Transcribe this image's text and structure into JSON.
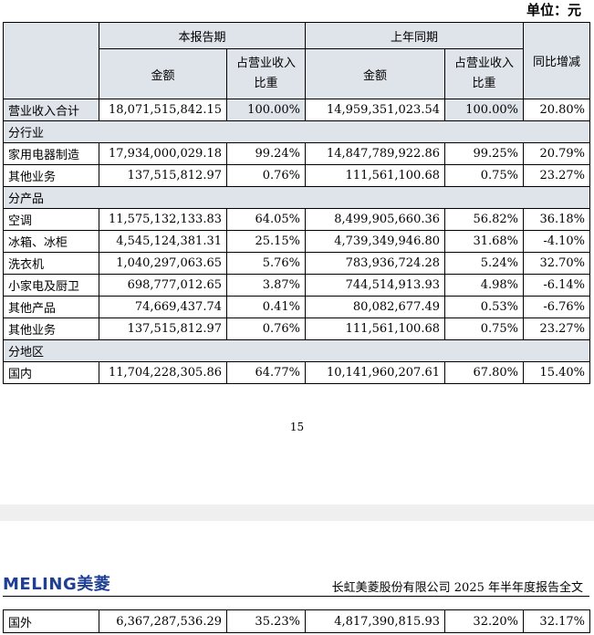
{
  "unit_label": "单位：元",
  "header": {
    "current_period": "本报告期",
    "same_period_last_year": "上年同期",
    "amount": "金额",
    "share_line1": "占营业收入",
    "share_line2": "比重",
    "yoy_change": "同比增减"
  },
  "total": {
    "name": "营业收入合计",
    "cur_amt": "18,071,515,842.15",
    "cur_pct": "100.00%",
    "prev_amt": "14,959,351,023.54",
    "prev_pct": "100.00%",
    "yoy": "20.80%"
  },
  "by_industry": {
    "title": "分行业",
    "rows": [
      {
        "name": "家用电器制造",
        "cur_amt": "17,934,000,029.18",
        "cur_pct": "99.24%",
        "prev_amt": "14,847,789,922.86",
        "prev_pct": "99.25%",
        "yoy": "20.79%"
      },
      {
        "name": "其他业务",
        "cur_amt": "137,515,812.97",
        "cur_pct": "0.76%",
        "prev_amt": "111,561,100.68",
        "prev_pct": "0.75%",
        "yoy": "23.27%"
      }
    ]
  },
  "by_product": {
    "title": "分产品",
    "rows": [
      {
        "name": "空调",
        "cur_amt": "11,575,132,133.83",
        "cur_pct": "64.05%",
        "prev_amt": "8,499,905,660.36",
        "prev_pct": "56.82%",
        "yoy": "36.18%"
      },
      {
        "name": "冰箱、冰柜",
        "cur_amt": "4,545,124,381.31",
        "cur_pct": "25.15%",
        "prev_amt": "4,739,349,946.80",
        "prev_pct": "31.68%",
        "yoy": "-4.10%"
      },
      {
        "name": "洗衣机",
        "cur_amt": "1,040,297,063.65",
        "cur_pct": "5.76%",
        "prev_amt": "783,936,724.28",
        "prev_pct": "5.24%",
        "yoy": "32.70%"
      },
      {
        "name": "小家电及厨卫",
        "cur_amt": "698,777,012.65",
        "cur_pct": "3.87%",
        "prev_amt": "744,514,913.93",
        "prev_pct": "4.98%",
        "yoy": "-6.14%"
      },
      {
        "name": "其他产品",
        "cur_amt": "74,669,437.74",
        "cur_pct": "0.41%",
        "prev_amt": "80,082,677.49",
        "prev_pct": "0.53%",
        "yoy": "-6.76%"
      },
      {
        "name": "其他业务",
        "cur_amt": "137,515,812.97",
        "cur_pct": "0.76%",
        "prev_amt": "111,561,100.68",
        "prev_pct": "0.75%",
        "yoy": "23.27%"
      }
    ]
  },
  "by_region": {
    "title": "分地区",
    "rows": [
      {
        "name": "国内",
        "cur_amt": "11,704,228,305.86",
        "cur_pct": "64.77%",
        "prev_amt": "10,141,960,207.61",
        "prev_pct": "67.80%",
        "yoy": "15.40%"
      }
    ]
  },
  "page_number": "15",
  "next_page": {
    "logo_text": "MELING美菱",
    "report_title": "长虹美菱股份有限公司 2025 年半年度报告全文",
    "rows": [
      {
        "name": "国外",
        "cur_amt": "6,367,287,536.29",
        "cur_pct": "35.23%",
        "prev_amt": "4,817,390,815.93",
        "prev_pct": "32.20%",
        "yoy": "32.17%"
      }
    ]
  }
}
